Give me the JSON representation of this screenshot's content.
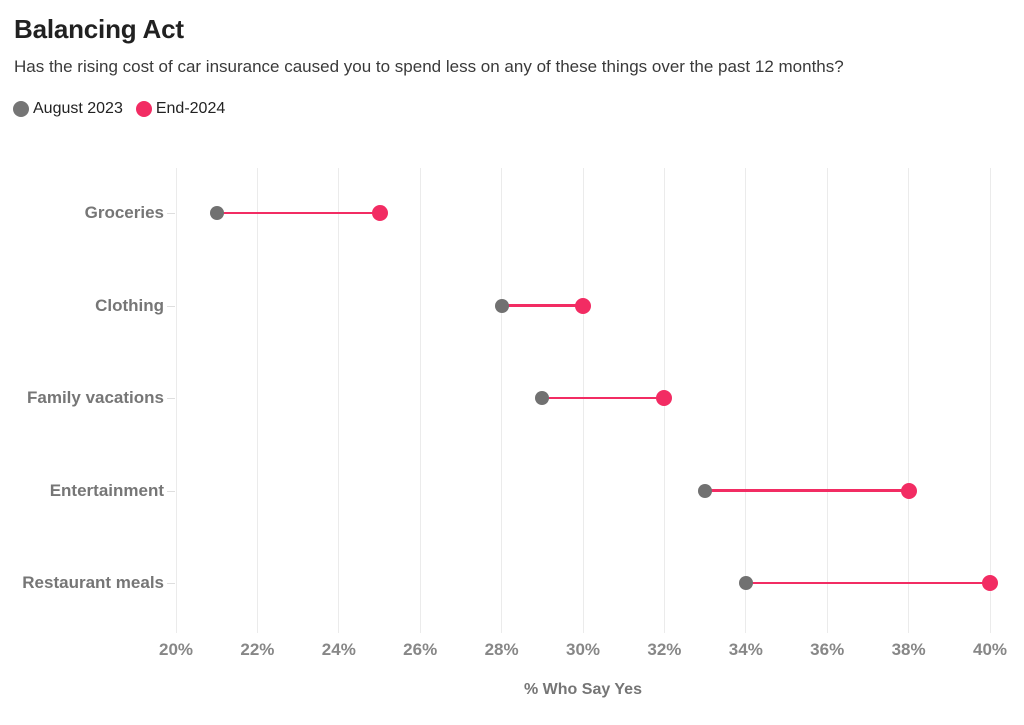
{
  "header": {
    "title": "Balancing Act",
    "subtitle": "Has the rising cost of car insurance caused you to spend less on any of these things over the past 12 months?"
  },
  "legend": {
    "items": [
      {
        "label": "August 2023",
        "color": "#757575"
      },
      {
        "label": "End-2024",
        "color": "#F22C63"
      }
    ]
  },
  "colors": {
    "accent_pink": "#F22C63",
    "series_gray": "#717171",
    "gridline": "#ebebeb",
    "label_gray": "#767676"
  },
  "chart_data": {
    "type": "dumbbell",
    "title": "Balancing Act",
    "subtitle": "Has the rising cost of car insurance caused you to spend less on any of these things over the past 12 months?",
    "categories": [
      "Groceries",
      "Clothing",
      "Family vacations",
      "Entertainment",
      "Restaurant meals"
    ],
    "series": [
      {
        "name": "August 2023",
        "color": "#717171",
        "values": [
          21,
          28,
          29,
          33,
          34
        ]
      },
      {
        "name": "End-2024",
        "color": "#F22C63",
        "values": [
          25,
          30,
          32,
          38,
          40
        ]
      }
    ],
    "xlabel": "% Who Say Yes",
    "ylabel": "",
    "xlim": [
      20,
      40
    ],
    "x_tick_step": 2,
    "x_tick_suffix": "%",
    "x_ticks": [
      "20%",
      "22%",
      "24%",
      "26%",
      "28%",
      "30%",
      "32%",
      "34%",
      "36%",
      "38%",
      "40%"
    ],
    "grid": "vertical",
    "legend_position": "top-left"
  }
}
